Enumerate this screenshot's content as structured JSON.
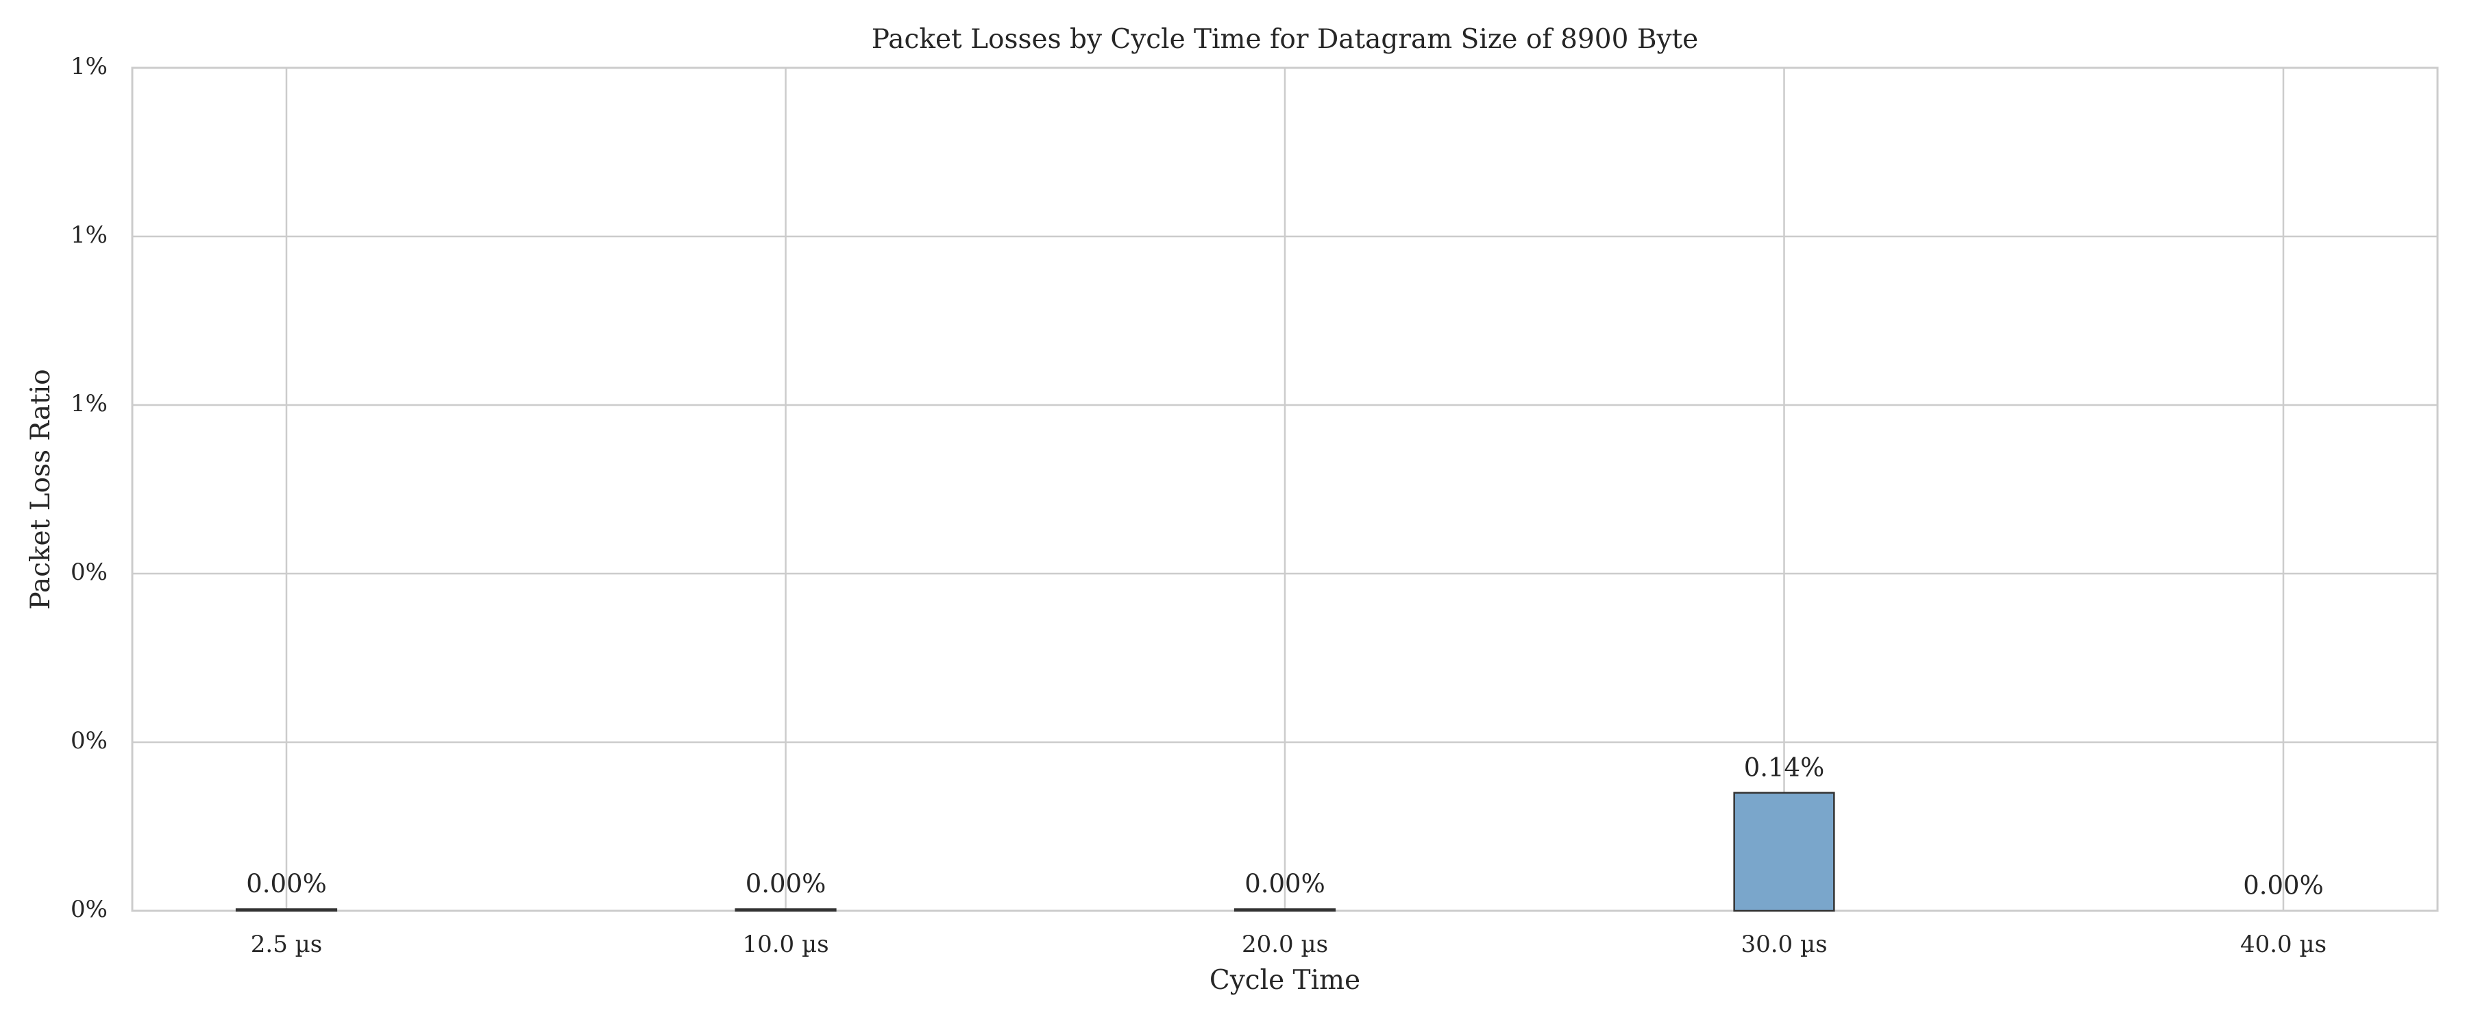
{
  "chart_data": {
    "type": "bar",
    "title": "Packet Losses by Cycle Time for Datagram Size of 8900 Byte",
    "x_label": "Cycle Time",
    "y_label": "Packet Loss Ratio",
    "categories": [
      "2.5 µs",
      "10.0 µs",
      "20.0 µs",
      "30.0 µs",
      "40.0 µs"
    ],
    "values": [
      2e-05,
      2e-05,
      2e-05,
      0.0014,
      0
    ],
    "value_labels": [
      "0.00%",
      "0.00%",
      "0.00%",
      "0.14%",
      "0.00%"
    ],
    "color": "#7aa6cb",
    "edge_color": "#333333",
    "ylim": [
      0,
      0.01
    ],
    "yticks": [
      {
        "value": 0,
        "label": "0%"
      },
      {
        "value": 0.002,
        "label": "0%"
      },
      {
        "value": 0.004,
        "label": "0%"
      },
      {
        "value": 0.006,
        "label": "1%"
      },
      {
        "value": 0.008,
        "label": "1%"
      },
      {
        "value": 0.01,
        "label": "1%"
      }
    ],
    "grid": true
  }
}
